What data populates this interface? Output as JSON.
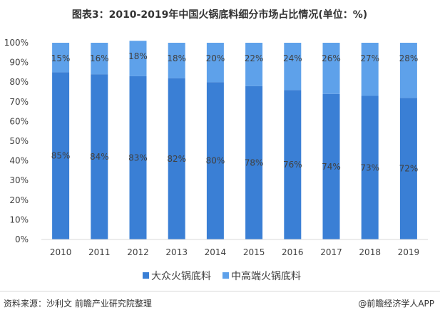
{
  "chart_data": {
    "type": "bar",
    "stacked": true,
    "title": "图表3：2010-2019年中国火锅底料细分市场占比情况(单位：%)",
    "categories": [
      "2010",
      "2011",
      "2012",
      "2013",
      "2014",
      "2015",
      "2016",
      "2017",
      "2018",
      "2019"
    ],
    "series": [
      {
        "name": "大众火锅底料",
        "values": [
          85,
          84,
          83,
          82,
          80,
          78,
          76,
          74,
          73,
          72
        ],
        "color": "#3a7fd5"
      },
      {
        "name": "中高端火锅底料",
        "values": [
          15,
          16,
          18,
          18,
          20,
          22,
          24,
          26,
          27,
          28
        ],
        "color": "#5ea1ea"
      }
    ],
    "y_ticks": [
      "0%",
      "10%",
      "20%",
      "30%",
      "40%",
      "50%",
      "60%",
      "70%",
      "80%",
      "90%",
      "100%"
    ],
    "ylim": [
      0,
      100
    ],
    "legend_position": "bottom"
  },
  "footer": {
    "source": "资料来源：沙利文   前瞻产业研究院整理",
    "brand": "@前瞻经济学人APP"
  }
}
